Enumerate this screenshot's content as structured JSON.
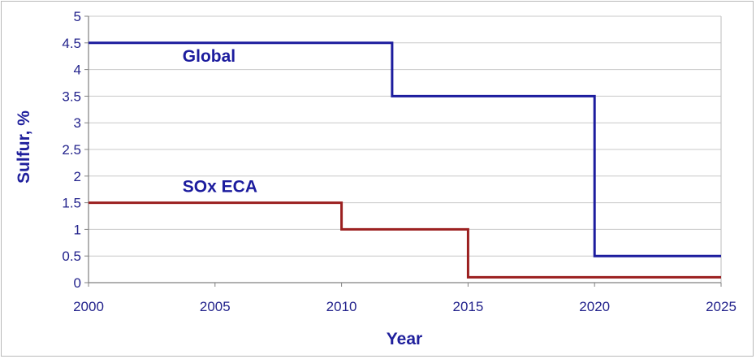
{
  "chart_data": {
    "type": "line",
    "step": true,
    "xlabel": "Year",
    "ylabel": "Sulfur, %",
    "xlim": [
      2000,
      2025
    ],
    "ylim": [
      0,
      5
    ],
    "xticks": [
      2000,
      2005,
      2010,
      2015,
      2020,
      2025
    ],
    "yticks": [
      0,
      0.5,
      1,
      1.5,
      2,
      2.5,
      3,
      3.5,
      4,
      4.5,
      5
    ],
    "ytick_labels": [
      "0",
      "0.5",
      "1",
      "1.5",
      "2",
      "2.5",
      "3",
      "3.5",
      "4",
      "4.5",
      "5"
    ],
    "grid": "horizontal",
    "series": [
      {
        "name": "Global",
        "color": "#1c1c9e",
        "points": [
          [
            2000,
            4.5
          ],
          [
            2012,
            4.5
          ],
          [
            2012,
            3.5
          ],
          [
            2020,
            3.5
          ],
          [
            2020,
            0.5
          ],
          [
            2025,
            0.5
          ]
        ]
      },
      {
        "name": "SOx ECA",
        "color": "#9b1f1f",
        "points": [
          [
            2000,
            1.5
          ],
          [
            2010,
            1.5
          ],
          [
            2010,
            1.0
          ],
          [
            2015,
            1.0
          ],
          [
            2015,
            0.1
          ],
          [
            2025,
            0.1
          ]
        ]
      }
    ],
    "series_labels": [
      {
        "text": "Global",
        "x": 2005,
        "y": 4.15
      },
      {
        "text": "SOx ECA",
        "x": 2005,
        "y": 1.7
      }
    ]
  }
}
